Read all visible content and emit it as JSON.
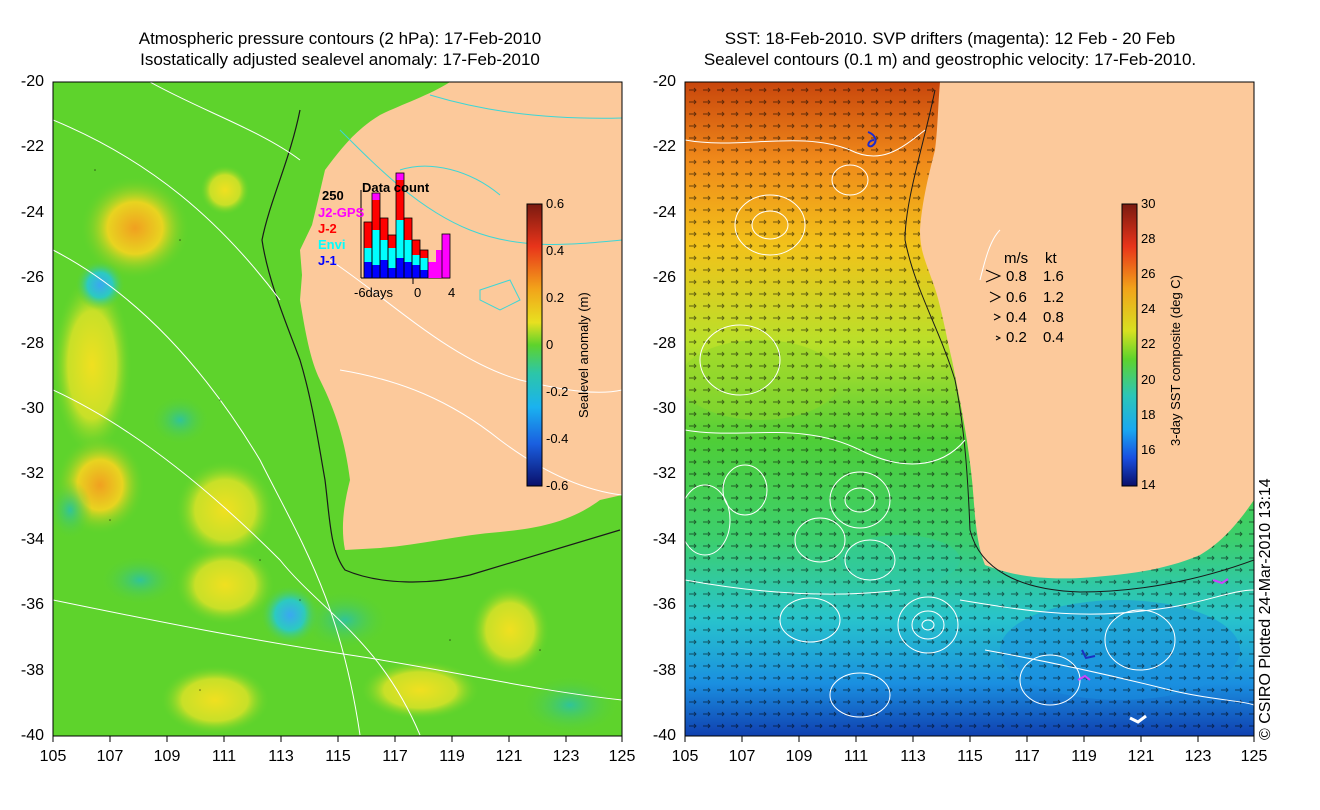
{
  "left_panel": {
    "title_line1": "Atmospheric pressure contours (2 hPa): 17-Feb-2010",
    "title_line2": "Isostatically adjusted sealevel anomaly: 17-Feb-2010",
    "colorbar": {
      "label": "Sealevel anomaly (m)",
      "ticks": [
        "0.6",
        "0.4",
        "0.2",
        "0",
        "-0.2",
        "-0.4",
        "-0.6"
      ]
    },
    "inset": {
      "title": "Data count",
      "max_label": "250",
      "x_labels": [
        "-6days",
        "0",
        "4"
      ],
      "legend": [
        {
          "label": "J2-GPS",
          "color": "#ff00ff"
        },
        {
          "label": "J-2",
          "color": "#ff0000"
        },
        {
          "label": "Envi",
          "color": "#00ffff"
        },
        {
          "label": "J-1",
          "color": "#0000ff"
        }
      ]
    }
  },
  "right_panel": {
    "title_line1": "SST: 18-Feb-2010. SVP drifters (magenta): 12 Feb - 20 Feb",
    "title_line2": "Sealevel contours (0.1 m) and geostrophic velocity: 17-Feb-2010.",
    "colorbar": {
      "label": "3-day SST composite (deg C)",
      "ticks": [
        "30",
        "28",
        "26",
        "24",
        "22",
        "20",
        "18",
        "16",
        "14"
      ]
    },
    "velocity_legend": {
      "header_ms": "m/s",
      "header_kt": "kt",
      "rows": [
        {
          "ms": "0.8",
          "kt": "1.6"
        },
        {
          "ms": "0.6",
          "kt": "1.2"
        },
        {
          "ms": "0.4",
          "kt": "0.8"
        },
        {
          "ms": "0.2",
          "kt": "0.4"
        }
      ]
    }
  },
  "axes": {
    "y_labels": [
      "-20",
      "-22",
      "-24",
      "-26",
      "-28",
      "-30",
      "-32",
      "-34",
      "-36",
      "-38",
      "-40"
    ],
    "x_labels": [
      "105",
      "107",
      "109",
      "111",
      "113",
      "115",
      "117",
      "119",
      "121",
      "123",
      "125"
    ]
  },
  "copyright": "© CSIRO Plotted 24-Mar-2010 13:14",
  "colors": {
    "land": "#fcc99b",
    "ocean_anomaly_base": "#5ed32c",
    "sst_warm": "#e05a10",
    "sst_cool": "#1dbfe0"
  }
}
